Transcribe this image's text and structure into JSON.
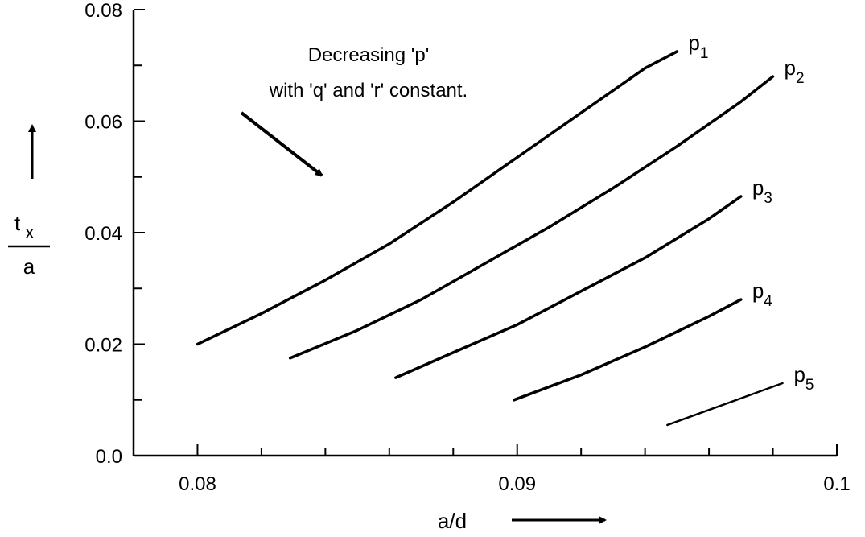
{
  "chart_data": {
    "type": "line",
    "xlabel": "a/d",
    "ylabel": {
      "numerator_main": "t",
      "numerator_sub": "x",
      "denominator": "a"
    },
    "xlim": [
      0.078,
      0.1
    ],
    "ylim": [
      0.0,
      0.08
    ],
    "x_ticks": [
      {
        "value": 0.08,
        "label": "0.08"
      },
      {
        "value": 0.09,
        "label": "0.09"
      },
      {
        "value": 0.1,
        "label": "0.1"
      }
    ],
    "x_minor_ticks": [
      0.082,
      0.084,
      0.086,
      0.088,
      0.092,
      0.094,
      0.096,
      0.098
    ],
    "y_ticks": [
      {
        "value": 0.0,
        "label": "0.0"
      },
      {
        "value": 0.02,
        "label": "0.02"
      },
      {
        "value": 0.04,
        "label": "0.04"
      },
      {
        "value": 0.06,
        "label": "0.06"
      },
      {
        "value": 0.08,
        "label": "0.08"
      }
    ],
    "y_minor_ticks": [
      0.01,
      0.03,
      0.05,
      0.07
    ],
    "grid": false,
    "annotation": {
      "lines": [
        "Decreasing 'p'",
        "with 'q' and 'r' constant."
      ]
    },
    "series": [
      {
        "name": "p",
        "subscript": "1",
        "x": [
          0.08,
          0.082,
          0.084,
          0.086,
          0.088,
          0.09,
          0.092,
          0.094,
          0.095
        ],
        "y": [
          0.02,
          0.0255,
          0.0315,
          0.038,
          0.0455,
          0.0535,
          0.0615,
          0.0695,
          0.0725
        ]
      },
      {
        "name": "p",
        "subscript": "2",
        "x": [
          0.0829,
          0.085,
          0.087,
          0.089,
          0.091,
          0.093,
          0.095,
          0.097,
          0.098
        ],
        "y": [
          0.0175,
          0.0225,
          0.028,
          0.0345,
          0.041,
          0.048,
          0.0555,
          0.0635,
          0.068
        ]
      },
      {
        "name": "p",
        "subscript": "3",
        "x": [
          0.0862,
          0.088,
          0.09,
          0.092,
          0.094,
          0.096,
          0.097
        ],
        "y": [
          0.014,
          0.0185,
          0.0235,
          0.0295,
          0.0355,
          0.0425,
          0.0465
        ]
      },
      {
        "name": "p",
        "subscript": "4",
        "x": [
          0.0899,
          0.092,
          0.094,
          0.096,
          0.097
        ],
        "y": [
          0.01,
          0.0145,
          0.0195,
          0.025,
          0.028
        ]
      },
      {
        "name": "p",
        "subscript": "5",
        "x": [
          0.0947,
          0.0983
        ],
        "y": [
          0.0055,
          0.013
        ]
      }
    ]
  }
}
